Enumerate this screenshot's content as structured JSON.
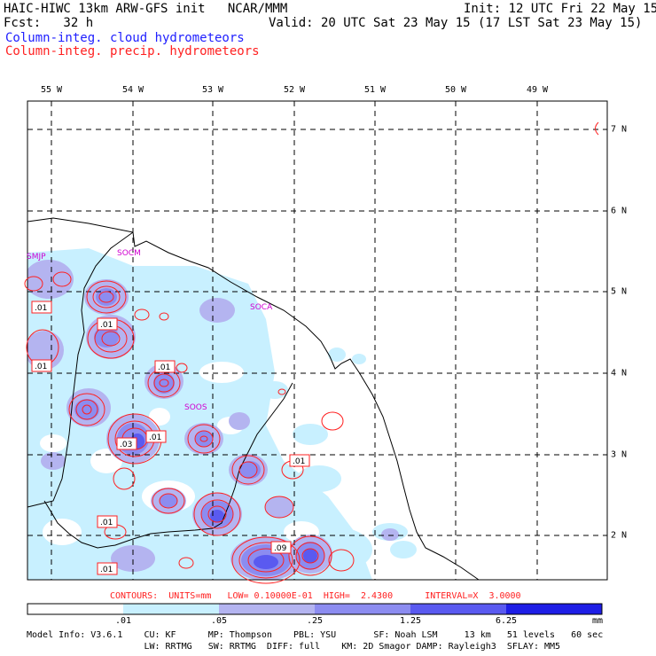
{
  "header": {
    "title": "HAIC-HIWC 13km ARW-GFS init   NCAR/MMM",
    "init": "Init: 12 UTC Fri 22 May 15",
    "fcst": "Fcst:   32 h",
    "valid": "Valid: 20 UTC Sat 23 May 15 (17 LST Sat 23 May 15)",
    "field1": "Column-integ. cloud hydrometeors",
    "field2": "Column-integ. precip. hydrometeors"
  },
  "map": {
    "lon_labels": [
      "55 W",
      "54 W",
      "53 W",
      "52 W",
      "51 W",
      "50 W",
      "49 W"
    ],
    "lat_labels": [
      "7 N",
      "6 N",
      "5 N",
      "4 N",
      "3 N",
      "2 N"
    ],
    "station_labels": [
      "SMJP",
      "SOCM",
      "SOCA",
      "SOOS"
    ],
    "contour_labels": [
      ".01",
      ".01",
      ".01",
      ".01",
      ".01",
      ".03",
      ".01",
      ".01",
      ".01",
      ".09",
      ".01"
    ],
    "colors": {
      "shade1": "#c8f0ff",
      "shade2": "#b4b4f0",
      "shade3": "#8c8cf0",
      "shade4": "#5a5af0",
      "shade5": "#3c3cf0",
      "shade6": "#1e1ee6",
      "contour": "#ff2020",
      "coast": "#000000",
      "station": "#d000d0"
    }
  },
  "footer": {
    "contours": "CONTOURS:  UNITS=mm   LOW= 0.10000E-01  HIGH=  2.4300      INTERVAL=X  3.0000",
    "colorbar_labels": [
      ".01",
      ".05",
      ".25",
      "1.25",
      "6.25"
    ],
    "units": "mm",
    "model_line1": "Model Info: V3.6.1    CU: KF      MP: Thompson    PBL: YSU       SF: Noah LSM     13 km   51 levels   60 sec",
    "model_line2": "                      LW: RRTMG   SW: RRTMG  DIFF: full    KM: 2D Smagor DAMP: Rayleigh3  SFLAY: MM5"
  }
}
